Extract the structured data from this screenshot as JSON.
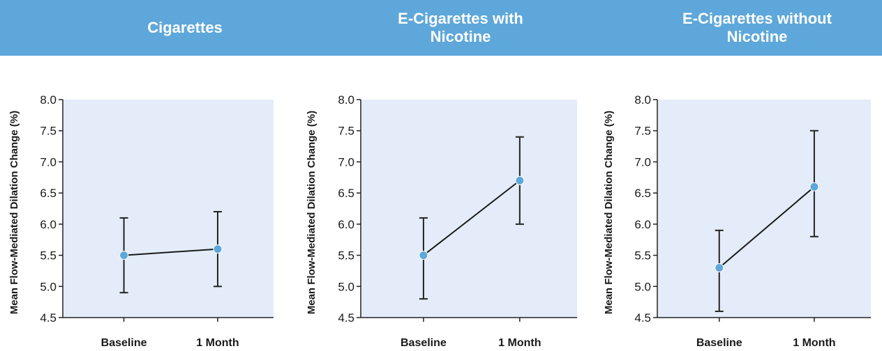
{
  "colors": {
    "header_bg": "#5ea7da",
    "plot_bg": "#e3ecf8",
    "marker": "#5ea7da",
    "line": "#1a1a1a"
  },
  "chart_data": [
    {
      "type": "line",
      "title": "Cigarettes",
      "ylabel": "Mean Flow-Mediated Dilation  Change (%)",
      "xlabel": "",
      "categories": [
        "Baseline",
        "1 Month"
      ],
      "values": [
        5.5,
        5.6
      ],
      "error_low": [
        4.9,
        5.0
      ],
      "error_high": [
        6.1,
        6.2
      ],
      "ylim": [
        4.5,
        8.0
      ],
      "yticks": [
        "4.5",
        "5.0",
        "5.5",
        "6.0",
        "6.5",
        "7.0",
        "7.5",
        "8.0"
      ],
      "grid": false
    },
    {
      "type": "line",
      "title": "E-Cigarettes with Nicotine",
      "ylabel": "Mean Flow-Mediated Dilation  Change (%)",
      "xlabel": "",
      "categories": [
        "Baseline",
        "1 Month"
      ],
      "values": [
        5.5,
        6.7
      ],
      "error_low": [
        4.8,
        6.0
      ],
      "error_high": [
        6.1,
        7.4
      ],
      "ylim": [
        4.5,
        8.0
      ],
      "yticks": [
        "4.5",
        "5.0",
        "5.5",
        "6.0",
        "6.5",
        "7.0",
        "7.5",
        "8.0"
      ],
      "grid": false
    },
    {
      "type": "line",
      "title": "E-Cigarettes without Nicotine",
      "ylabel": "Mean Flow-Mediated Dilation Change (%)",
      "xlabel": "",
      "categories": [
        "Baseline",
        "1 Month"
      ],
      "values": [
        5.3,
        6.6
      ],
      "error_low": [
        4.6,
        5.8
      ],
      "error_high": [
        5.9,
        7.5
      ],
      "ylim": [
        4.5,
        8.0
      ],
      "yticks": [
        "4.5",
        "5.0",
        "5.5",
        "6.0",
        "6.5",
        "7.0",
        "7.5",
        "8.0"
      ],
      "grid": false
    }
  ]
}
